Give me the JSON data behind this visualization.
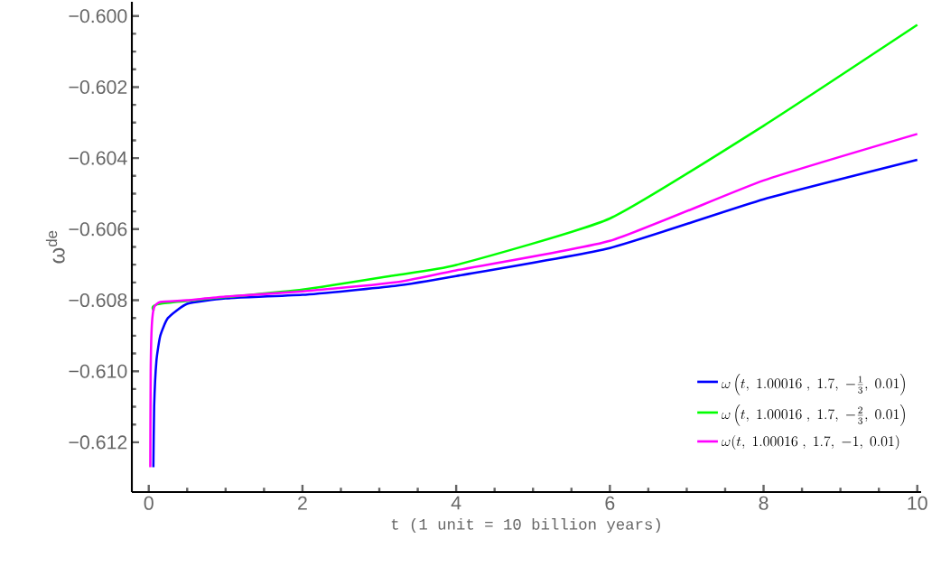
{
  "chart_data": {
    "type": "line",
    "xlabel": "t  (1 unit = 10  billion years)",
    "ylabel": "ω$^{de}$",
    "xlim": [
      -0.22,
      10.05
    ],
    "ylim": [
      -0.6134,
      -0.5996
    ],
    "xticks": [
      0,
      2,
      4,
      6,
      8,
      10
    ],
    "yticks": [
      {
        "value": -0.6,
        "label": "−0.600"
      },
      {
        "value": -0.602,
        "label": "−0.602"
      },
      {
        "value": -0.604,
        "label": "−0.604"
      },
      {
        "value": -0.606,
        "label": "−0.606"
      },
      {
        "value": -0.608,
        "label": "−0.608"
      },
      {
        "value": -0.61,
        "label": "−0.610"
      },
      {
        "value": -0.612,
        "label": "−0.612"
      }
    ],
    "legend": "bottom right",
    "marker": "none",
    "line_style": "solid",
    "grid": false,
    "series": [
      {
        "name": "\\omega\\left(t,\\ 1.00016\\ ,\\ 1.7,\\ -\\frac{1}{3},\\ 0.01\\right)",
        "color": "#0000ff",
        "x": [
          0.06,
          0.07,
          0.1,
          0.15,
          0.25,
          0.5,
          1,
          2,
          3.2,
          4,
          6,
          8,
          10
        ],
        "values": [
          -0.6127,
          -0.611,
          -0.6097,
          -0.609,
          -0.6085,
          -0.6081,
          -0.60795,
          -0.60785,
          -0.6076,
          -0.60732,
          -0.60653,
          -0.60516,
          -0.60405
        ]
      },
      {
        "name": "\\omega\\left(t,\\ 1.00016\\ ,\\ 1.7,\\ -\\frac{2}{3},\\ 0.01\\right)",
        "color": "#00ff00",
        "x": [
          0.07,
          0.15,
          2,
          3.2,
          4,
          6,
          8,
          10
        ],
        "values": [
          -0.6083,
          -0.6081,
          -0.6077,
          -0.6073,
          -0.60701,
          -0.6057,
          -0.60309,
          -0.60025
        ]
      },
      {
        "name": "\\omega(t,\\ 1.00016\\ ,\\ 1.7,\\ -1,\\ 0.01)",
        "color": "#ff00ff",
        "x": [
          0.02,
          0.025,
          0.04,
          0.07,
          0.15,
          0.5,
          1,
          2,
          3.2,
          4,
          6,
          8,
          10
        ],
        "values": [
          -0.6127,
          -0.61,
          -0.6087,
          -0.6082,
          -0.60805,
          -0.608,
          -0.6079,
          -0.60775,
          -0.6075,
          -0.60716,
          -0.60633,
          -0.60463,
          -0.60332
        ]
      }
    ]
  }
}
